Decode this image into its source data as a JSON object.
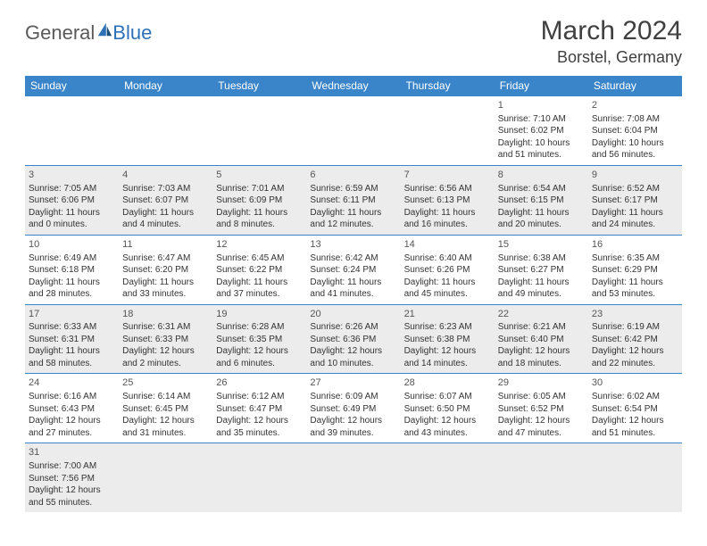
{
  "logo": {
    "word1": "General",
    "word2": "Blue"
  },
  "title": "March 2024",
  "location": "Borstel, Germany",
  "colors": {
    "header_bg": "#3a85c9",
    "header_text": "#ffffff",
    "row_alt_bg": "#ececec",
    "row_bg": "#ffffff",
    "border": "#3a85c9",
    "title_color": "#404040",
    "logo_gray": "#5a5a5a",
    "logo_blue": "#2d72b8"
  },
  "day_headers": [
    "Sunday",
    "Monday",
    "Tuesday",
    "Wednesday",
    "Thursday",
    "Friday",
    "Saturday"
  ],
  "weeks": [
    [
      null,
      null,
      null,
      null,
      null,
      {
        "n": "1",
        "sr": "7:10 AM",
        "ss": "6:02 PM",
        "dl": "10 hours and 51 minutes."
      },
      {
        "n": "2",
        "sr": "7:08 AM",
        "ss": "6:04 PM",
        "dl": "10 hours and 56 minutes."
      }
    ],
    [
      {
        "n": "3",
        "sr": "7:05 AM",
        "ss": "6:06 PM",
        "dl": "11 hours and 0 minutes."
      },
      {
        "n": "4",
        "sr": "7:03 AM",
        "ss": "6:07 PM",
        "dl": "11 hours and 4 minutes."
      },
      {
        "n": "5",
        "sr": "7:01 AM",
        "ss": "6:09 PM",
        "dl": "11 hours and 8 minutes."
      },
      {
        "n": "6",
        "sr": "6:59 AM",
        "ss": "6:11 PM",
        "dl": "11 hours and 12 minutes."
      },
      {
        "n": "7",
        "sr": "6:56 AM",
        "ss": "6:13 PM",
        "dl": "11 hours and 16 minutes."
      },
      {
        "n": "8",
        "sr": "6:54 AM",
        "ss": "6:15 PM",
        "dl": "11 hours and 20 minutes."
      },
      {
        "n": "9",
        "sr": "6:52 AM",
        "ss": "6:17 PM",
        "dl": "11 hours and 24 minutes."
      }
    ],
    [
      {
        "n": "10",
        "sr": "6:49 AM",
        "ss": "6:18 PM",
        "dl": "11 hours and 28 minutes."
      },
      {
        "n": "11",
        "sr": "6:47 AM",
        "ss": "6:20 PM",
        "dl": "11 hours and 33 minutes."
      },
      {
        "n": "12",
        "sr": "6:45 AM",
        "ss": "6:22 PM",
        "dl": "11 hours and 37 minutes."
      },
      {
        "n": "13",
        "sr": "6:42 AM",
        "ss": "6:24 PM",
        "dl": "11 hours and 41 minutes."
      },
      {
        "n": "14",
        "sr": "6:40 AM",
        "ss": "6:26 PM",
        "dl": "11 hours and 45 minutes."
      },
      {
        "n": "15",
        "sr": "6:38 AM",
        "ss": "6:27 PM",
        "dl": "11 hours and 49 minutes."
      },
      {
        "n": "16",
        "sr": "6:35 AM",
        "ss": "6:29 PM",
        "dl": "11 hours and 53 minutes."
      }
    ],
    [
      {
        "n": "17",
        "sr": "6:33 AM",
        "ss": "6:31 PM",
        "dl": "11 hours and 58 minutes."
      },
      {
        "n": "18",
        "sr": "6:31 AM",
        "ss": "6:33 PM",
        "dl": "12 hours and 2 minutes."
      },
      {
        "n": "19",
        "sr": "6:28 AM",
        "ss": "6:35 PM",
        "dl": "12 hours and 6 minutes."
      },
      {
        "n": "20",
        "sr": "6:26 AM",
        "ss": "6:36 PM",
        "dl": "12 hours and 10 minutes."
      },
      {
        "n": "21",
        "sr": "6:23 AM",
        "ss": "6:38 PM",
        "dl": "12 hours and 14 minutes."
      },
      {
        "n": "22",
        "sr": "6:21 AM",
        "ss": "6:40 PM",
        "dl": "12 hours and 18 minutes."
      },
      {
        "n": "23",
        "sr": "6:19 AM",
        "ss": "6:42 PM",
        "dl": "12 hours and 22 minutes."
      }
    ],
    [
      {
        "n": "24",
        "sr": "6:16 AM",
        "ss": "6:43 PM",
        "dl": "12 hours and 27 minutes."
      },
      {
        "n": "25",
        "sr": "6:14 AM",
        "ss": "6:45 PM",
        "dl": "12 hours and 31 minutes."
      },
      {
        "n": "26",
        "sr": "6:12 AM",
        "ss": "6:47 PM",
        "dl": "12 hours and 35 minutes."
      },
      {
        "n": "27",
        "sr": "6:09 AM",
        "ss": "6:49 PM",
        "dl": "12 hours and 39 minutes."
      },
      {
        "n": "28",
        "sr": "6:07 AM",
        "ss": "6:50 PM",
        "dl": "12 hours and 43 minutes."
      },
      {
        "n": "29",
        "sr": "6:05 AM",
        "ss": "6:52 PM",
        "dl": "12 hours and 47 minutes."
      },
      {
        "n": "30",
        "sr": "6:02 AM",
        "ss": "6:54 PM",
        "dl": "12 hours and 51 minutes."
      }
    ],
    [
      {
        "n": "31",
        "sr": "7:00 AM",
        "ss": "7:56 PM",
        "dl": "12 hours and 55 minutes."
      },
      null,
      null,
      null,
      null,
      null,
      null
    ]
  ],
  "labels": {
    "sunrise": "Sunrise: ",
    "sunset": "Sunset: ",
    "daylight": "Daylight: "
  }
}
